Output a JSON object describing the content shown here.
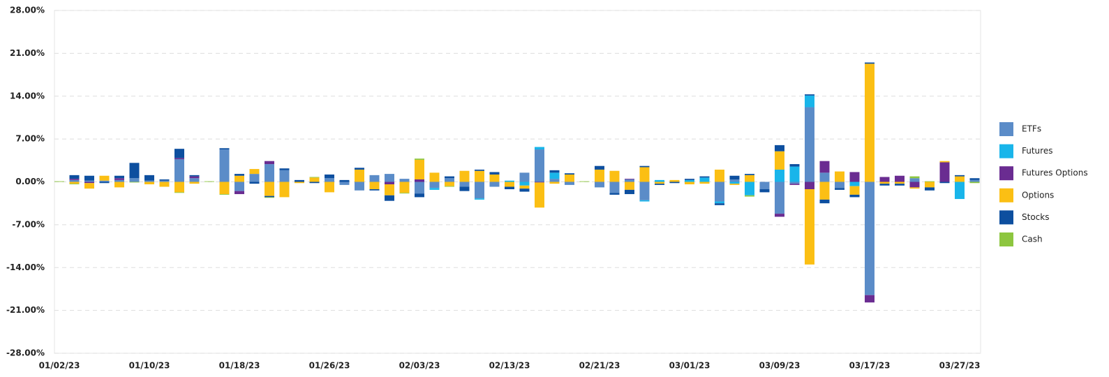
{
  "chart_data": {
    "type": "stacked_bar",
    "categories": [
      "01/02/23",
      null,
      null,
      null,
      null,
      null,
      "01/10/23",
      null,
      null,
      null,
      null,
      null,
      "01/18/23",
      null,
      null,
      null,
      null,
      null,
      "01/26/23",
      null,
      null,
      null,
      null,
      null,
      "02/03/23",
      null,
      null,
      null,
      null,
      null,
      "02/13/23",
      null,
      null,
      null,
      null,
      null,
      "02/21/23",
      null,
      null,
      null,
      null,
      null,
      "03/01/23",
      null,
      null,
      null,
      null,
      null,
      "03/09/23",
      null,
      null,
      null,
      null,
      null,
      "03/17/23",
      null,
      null,
      null,
      null,
      null,
      "03/27/23",
      null
    ],
    "series": [
      {
        "name": "ETFs",
        "color": "#5b8cc8",
        "values": [
          0,
          0.3,
          0.2,
          0.2,
          0.3,
          0.6,
          0.2,
          0.2,
          3.7,
          0.6,
          0,
          5.3,
          -1.5,
          1.3,
          2.9,
          1.9,
          0,
          0,
          0.6,
          -0.5,
          -1.4,
          1.1,
          1.3,
          0.5,
          -1.9,
          -1.0,
          0.6,
          -0.8,
          -2.7,
          -0.8,
          0,
          1.5,
          5.3,
          0.5,
          -0.5,
          0,
          -0.9,
          -1.8,
          0.4,
          -3.0,
          0,
          0,
          0,
          0,
          -3.2,
          0.4,
          0,
          -1.2,
          -5.2,
          -0.3,
          12.2,
          1.5,
          -1.0,
          0,
          -18.5,
          0,
          0,
          0.6,
          0,
          0,
          0,
          0.3
        ]
      },
      {
        "name": "Futures",
        "color": "#19b5ea",
        "values": [
          0,
          0,
          0,
          0,
          0,
          0,
          0,
          0,
          0,
          0,
          0,
          0,
          0,
          0,
          0,
          0,
          0,
          0,
          0,
          0,
          0,
          0,
          0,
          0,
          0,
          -0.3,
          0,
          0,
          -0.2,
          0,
          0.2,
          -0.6,
          0.4,
          1.0,
          0,
          0,
          0,
          0,
          0,
          -0.2,
          0.3,
          0,
          0.3,
          0.7,
          -0.3,
          -0.3,
          -2.2,
          0,
          2.0,
          2.5,
          1.9,
          0,
          0,
          -0.7,
          0,
          0,
          0,
          0,
          0,
          0,
          -2.8,
          0
        ]
      },
      {
        "name": "Futures Options",
        "color": "#6a2c91",
        "values": [
          0,
          0.2,
          -0.2,
          0,
          0.3,
          0,
          0,
          0,
          0.2,
          0.3,
          0,
          0,
          -0.5,
          0,
          0.5,
          0,
          0,
          0,
          0,
          0,
          0,
          0,
          -0.4,
          0,
          0.4,
          0,
          0,
          0,
          0,
          0,
          0,
          0,
          -0.1,
          0,
          0,
          0,
          0,
          0,
          0.1,
          0,
          0,
          0,
          0,
          0,
          0,
          0,
          0,
          0,
          -0.5,
          -0.2,
          -1.2,
          1.9,
          0,
          1.6,
          -1.2,
          0.8,
          1.0,
          -0.9,
          0,
          3.2,
          0,
          0
        ]
      },
      {
        "name": "Options",
        "color": "#fbbf14",
        "values": [
          0,
          -0.3,
          -0.9,
          0.8,
          -0.9,
          0,
          -0.4,
          -0.8,
          -1.7,
          -0.3,
          0,
          -2.0,
          1.0,
          0.8,
          -2.3,
          -2.5,
          -0.2,
          0.7,
          -1.7,
          0,
          2.0,
          -1.2,
          -1.8,
          -1.8,
          3.2,
          1.5,
          -0.7,
          1.8,
          1.8,
          1.2,
          -0.8,
          -0.5,
          -4.1,
          -0.3,
          1.2,
          0,
          2.0,
          1.8,
          -1.3,
          2.4,
          -0.3,
          0.3,
          -0.4,
          -0.3,
          2.0,
          -0.2,
          1.1,
          0,
          3.0,
          0,
          -12.3,
          -2.9,
          1.7,
          -1.4,
          19.3,
          -0.3,
          -0.3,
          -0.2,
          -0.9,
          0.2,
          0.9,
          0
        ]
      },
      {
        "name": "Stocks",
        "color": "#0d4f9f",
        "values": [
          0,
          0.6,
          0.8,
          -0.2,
          0.4,
          2.5,
          0.9,
          0.2,
          1.5,
          0.2,
          0,
          0.2,
          0.3,
          -0.3,
          -0.2,
          0.3,
          0.3,
          -0.2,
          0.6,
          0.3,
          0.3,
          -0.2,
          -0.9,
          0,
          -0.6,
          0,
          0.3,
          -0.7,
          0.2,
          0.4,
          -0.4,
          -0.5,
          0,
          0.4,
          0.2,
          0,
          0.6,
          -0.3,
          -0.7,
          0.2,
          -0.2,
          -0.2,
          0.2,
          0.2,
          -0.3,
          0.6,
          0.2,
          -0.5,
          1.0,
          0.4,
          0.2,
          -0.6,
          -0.3,
          -0.4,
          0.2,
          -0.3,
          -0.3,
          0,
          -0.5,
          -0.2,
          0.2,
          0.3
        ]
      },
      {
        "name": "Cash",
        "color": "#8dc63f",
        "values": [
          0.1,
          -0.1,
          0,
          0,
          0,
          -0.1,
          0,
          0,
          -0.1,
          0,
          0.1,
          -0.1,
          0,
          0,
          -0.1,
          0,
          0,
          0.1,
          0,
          0,
          0,
          0,
          0,
          -0.1,
          0.2,
          0,
          -0.1,
          0,
          0,
          0,
          0,
          0,
          0,
          0,
          0,
          0.1,
          0,
          0,
          0,
          0,
          0,
          0,
          0,
          0,
          0,
          0,
          -0.2,
          0,
          0,
          0,
          0,
          0,
          0,
          0,
          0,
          0,
          0,
          0.3,
          0.1,
          0,
          0,
          -0.2
        ]
      }
    ],
    "ylim": [
      -28,
      28
    ],
    "yticks": [
      {
        "value": -28,
        "label": "-28.00%"
      },
      {
        "value": -21,
        "label": "-21.00%"
      },
      {
        "value": -14,
        "label": "-14.00%"
      },
      {
        "value": -7,
        "label": "-7.00%"
      },
      {
        "value": 0,
        "label": "0.00%"
      },
      {
        "value": 7,
        "label": "7.00%"
      },
      {
        "value": 14,
        "label": "14.00%"
      },
      {
        "value": 21,
        "label": "21.00%"
      },
      {
        "value": 28,
        "label": "28.00%"
      }
    ],
    "grid": true,
    "legend": "right"
  }
}
